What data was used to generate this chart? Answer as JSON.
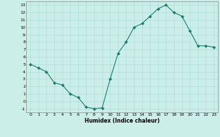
{
  "x": [
    0,
    1,
    2,
    3,
    4,
    5,
    6,
    7,
    8,
    9,
    10,
    11,
    12,
    13,
    14,
    15,
    16,
    17,
    18,
    19,
    20,
    21,
    22,
    23
  ],
  "y": [
    5.0,
    4.5,
    4.0,
    2.5,
    2.2,
    1.0,
    0.5,
    -0.8,
    -1.0,
    -0.9,
    3.0,
    6.5,
    8.0,
    10.0,
    10.5,
    11.5,
    12.5,
    13.0,
    12.0,
    11.5,
    9.5,
    7.5,
    7.5,
    7.3
  ],
  "line_color": "#1a7a6e",
  "marker_color": "#1a7a6e",
  "bg_color": "#cceee8",
  "grid_color": "#aaddd8",
  "xlabel": "Humidex (Indice chaleur)",
  "xlim": [
    -0.5,
    23.5
  ],
  "ylim": [
    -1.5,
    13.5
  ],
  "yticks": [
    -1,
    0,
    1,
    2,
    3,
    4,
    5,
    6,
    7,
    8,
    9,
    10,
    11,
    12,
    13
  ],
  "xticks": [
    0,
    1,
    2,
    3,
    4,
    5,
    6,
    7,
    8,
    9,
    10,
    11,
    12,
    13,
    14,
    15,
    16,
    17,
    18,
    19,
    20,
    21,
    22,
    23
  ]
}
